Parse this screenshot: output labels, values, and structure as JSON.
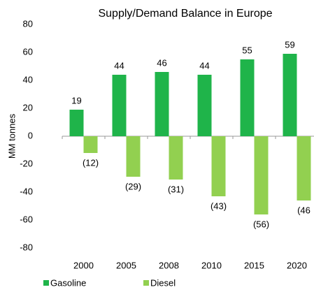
{
  "chart_data": {
    "type": "bar",
    "title": "Supply/Demand Balance in Europe",
    "y_label": "MM tonnes",
    "categories": [
      "2000",
      "2005",
      "2008",
      "2010",
      "2015",
      "2020"
    ],
    "series": [
      {
        "name": "Gasoline",
        "color": "#1fb44a",
        "values": [
          19,
          44,
          46,
          44,
          55,
          59
        ]
      },
      {
        "name": "Diesel",
        "color": "#92d050",
        "values": [
          -12,
          -29,
          -31,
          -43,
          -56,
          -46
        ],
        "value_labels": [
          "(12)",
          "(29)",
          "(31)",
          "(43)",
          "(56)",
          "(46"
        ]
      }
    ],
    "ylim": [
      -80,
      80
    ],
    "yticks": [
      -80,
      -60,
      -40,
      -20,
      0,
      20,
      40,
      60,
      80
    ],
    "grid": false
  }
}
